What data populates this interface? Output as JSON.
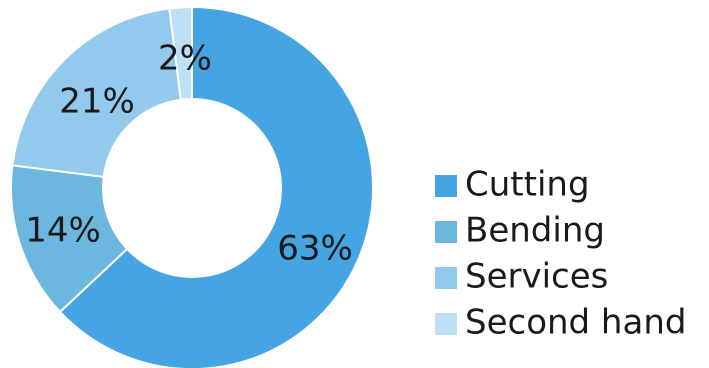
{
  "chart_data": {
    "type": "pie",
    "variant": "donut",
    "title": "",
    "categories": [
      "Cutting",
      "Bending",
      "Services",
      "Second hand"
    ],
    "values": [
      63,
      14,
      21,
      2
    ],
    "value_labels": [
      "63%",
      "14%",
      "21%",
      "2%"
    ],
    "colors": [
      "#44a5e2",
      "#6cb7df",
      "#92caee",
      "#bee0f6"
    ],
    "legend_position": "right",
    "start_angle": "top, clockwise"
  }
}
